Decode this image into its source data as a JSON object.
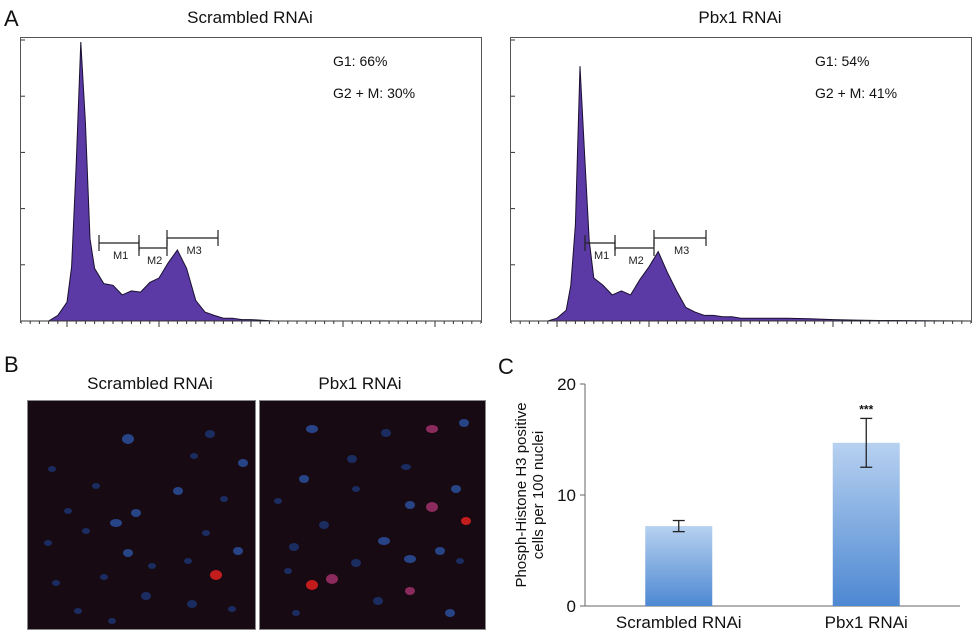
{
  "panel_a": {
    "letter": "A",
    "plots": [
      {
        "title": "Scrambled RNAi",
        "stat_g1": "G1: 66%",
        "stat_g2m": "G2 + M: 30%",
        "gate_labels": [
          "M1",
          "M2",
          "M3"
        ],
        "color": "#5b3aa6"
      },
      {
        "title": "Pbx1 RNAi",
        "stat_g1": "G1: 54%",
        "stat_g2m": "G2 + M: 41%",
        "gate_labels": [
          "M1",
          "M2",
          "M3"
        ],
        "color": "#5b3aa6"
      }
    ]
  },
  "panel_b": {
    "letter": "B",
    "images": [
      {
        "title": "Scrambled RNAi"
      },
      {
        "title": "Pbx1 RNAi"
      }
    ]
  },
  "panel_c": {
    "letter": "C"
  },
  "chart_data": [
    {
      "type": "area",
      "title": "Scrambled RNAi",
      "annotations": [
        "G1: 66%",
        "G2 + M: 30%"
      ],
      "gates": [
        "M1",
        "M2",
        "M3"
      ],
      "x": [
        0,
        2,
        4,
        6,
        8,
        10,
        11,
        12,
        13,
        14,
        15,
        16,
        18,
        20,
        22,
        24,
        26,
        28,
        30,
        32,
        34,
        36,
        38,
        40,
        42,
        44,
        46,
        48,
        50,
        55,
        60,
        100
      ],
      "y": [
        0,
        0,
        0,
        0,
        0.02,
        0.06,
        0.2,
        0.55,
        1.0,
        0.7,
        0.3,
        0.18,
        0.14,
        0.12,
        0.1,
        0.1,
        0.11,
        0.13,
        0.16,
        0.2,
        0.26,
        0.18,
        0.08,
        0.03,
        0.02,
        0.01,
        0.01,
        0.005,
        0.005,
        0,
        0,
        0
      ]
    },
    {
      "type": "area",
      "title": "Pbx1 RNAi",
      "annotations": [
        "G1: 54%",
        "G2 + M: 41%"
      ],
      "gates": [
        "M1",
        "M2",
        "M3"
      ],
      "x": [
        0,
        2,
        4,
        6,
        8,
        10,
        12,
        13,
        14,
        15,
        16,
        17,
        18,
        20,
        22,
        24,
        26,
        28,
        30,
        32,
        34,
        36,
        38,
        40,
        42,
        44,
        46,
        48,
        50,
        55,
        60,
        65,
        70,
        75,
        80,
        100
      ],
      "y": [
        0,
        0,
        0,
        0,
        0,
        0.01,
        0.04,
        0.12,
        0.35,
        0.9,
        0.6,
        0.28,
        0.16,
        0.12,
        0.1,
        0.1,
        0.1,
        0.14,
        0.2,
        0.24,
        0.18,
        0.1,
        0.05,
        0.03,
        0.02,
        0.02,
        0.015,
        0.015,
        0.01,
        0.01,
        0.01,
        0.008,
        0.005,
        0.003,
        0.002,
        0
      ]
    },
    {
      "type": "bar",
      "categories": [
        "Scrambled RNAi",
        "Pbx1 RNAi"
      ],
      "values": [
        7.2,
        14.7
      ],
      "errors": [
        0.5,
        2.2
      ],
      "significance": [
        "",
        "***"
      ],
      "ylabel": "Phosph-Histone H3 positive cells per 100 nuclei",
      "ylim": [
        0,
        20
      ],
      "yticks": [
        "0",
        "10",
        "20"
      ],
      "color": "#7aa7dc"
    }
  ]
}
